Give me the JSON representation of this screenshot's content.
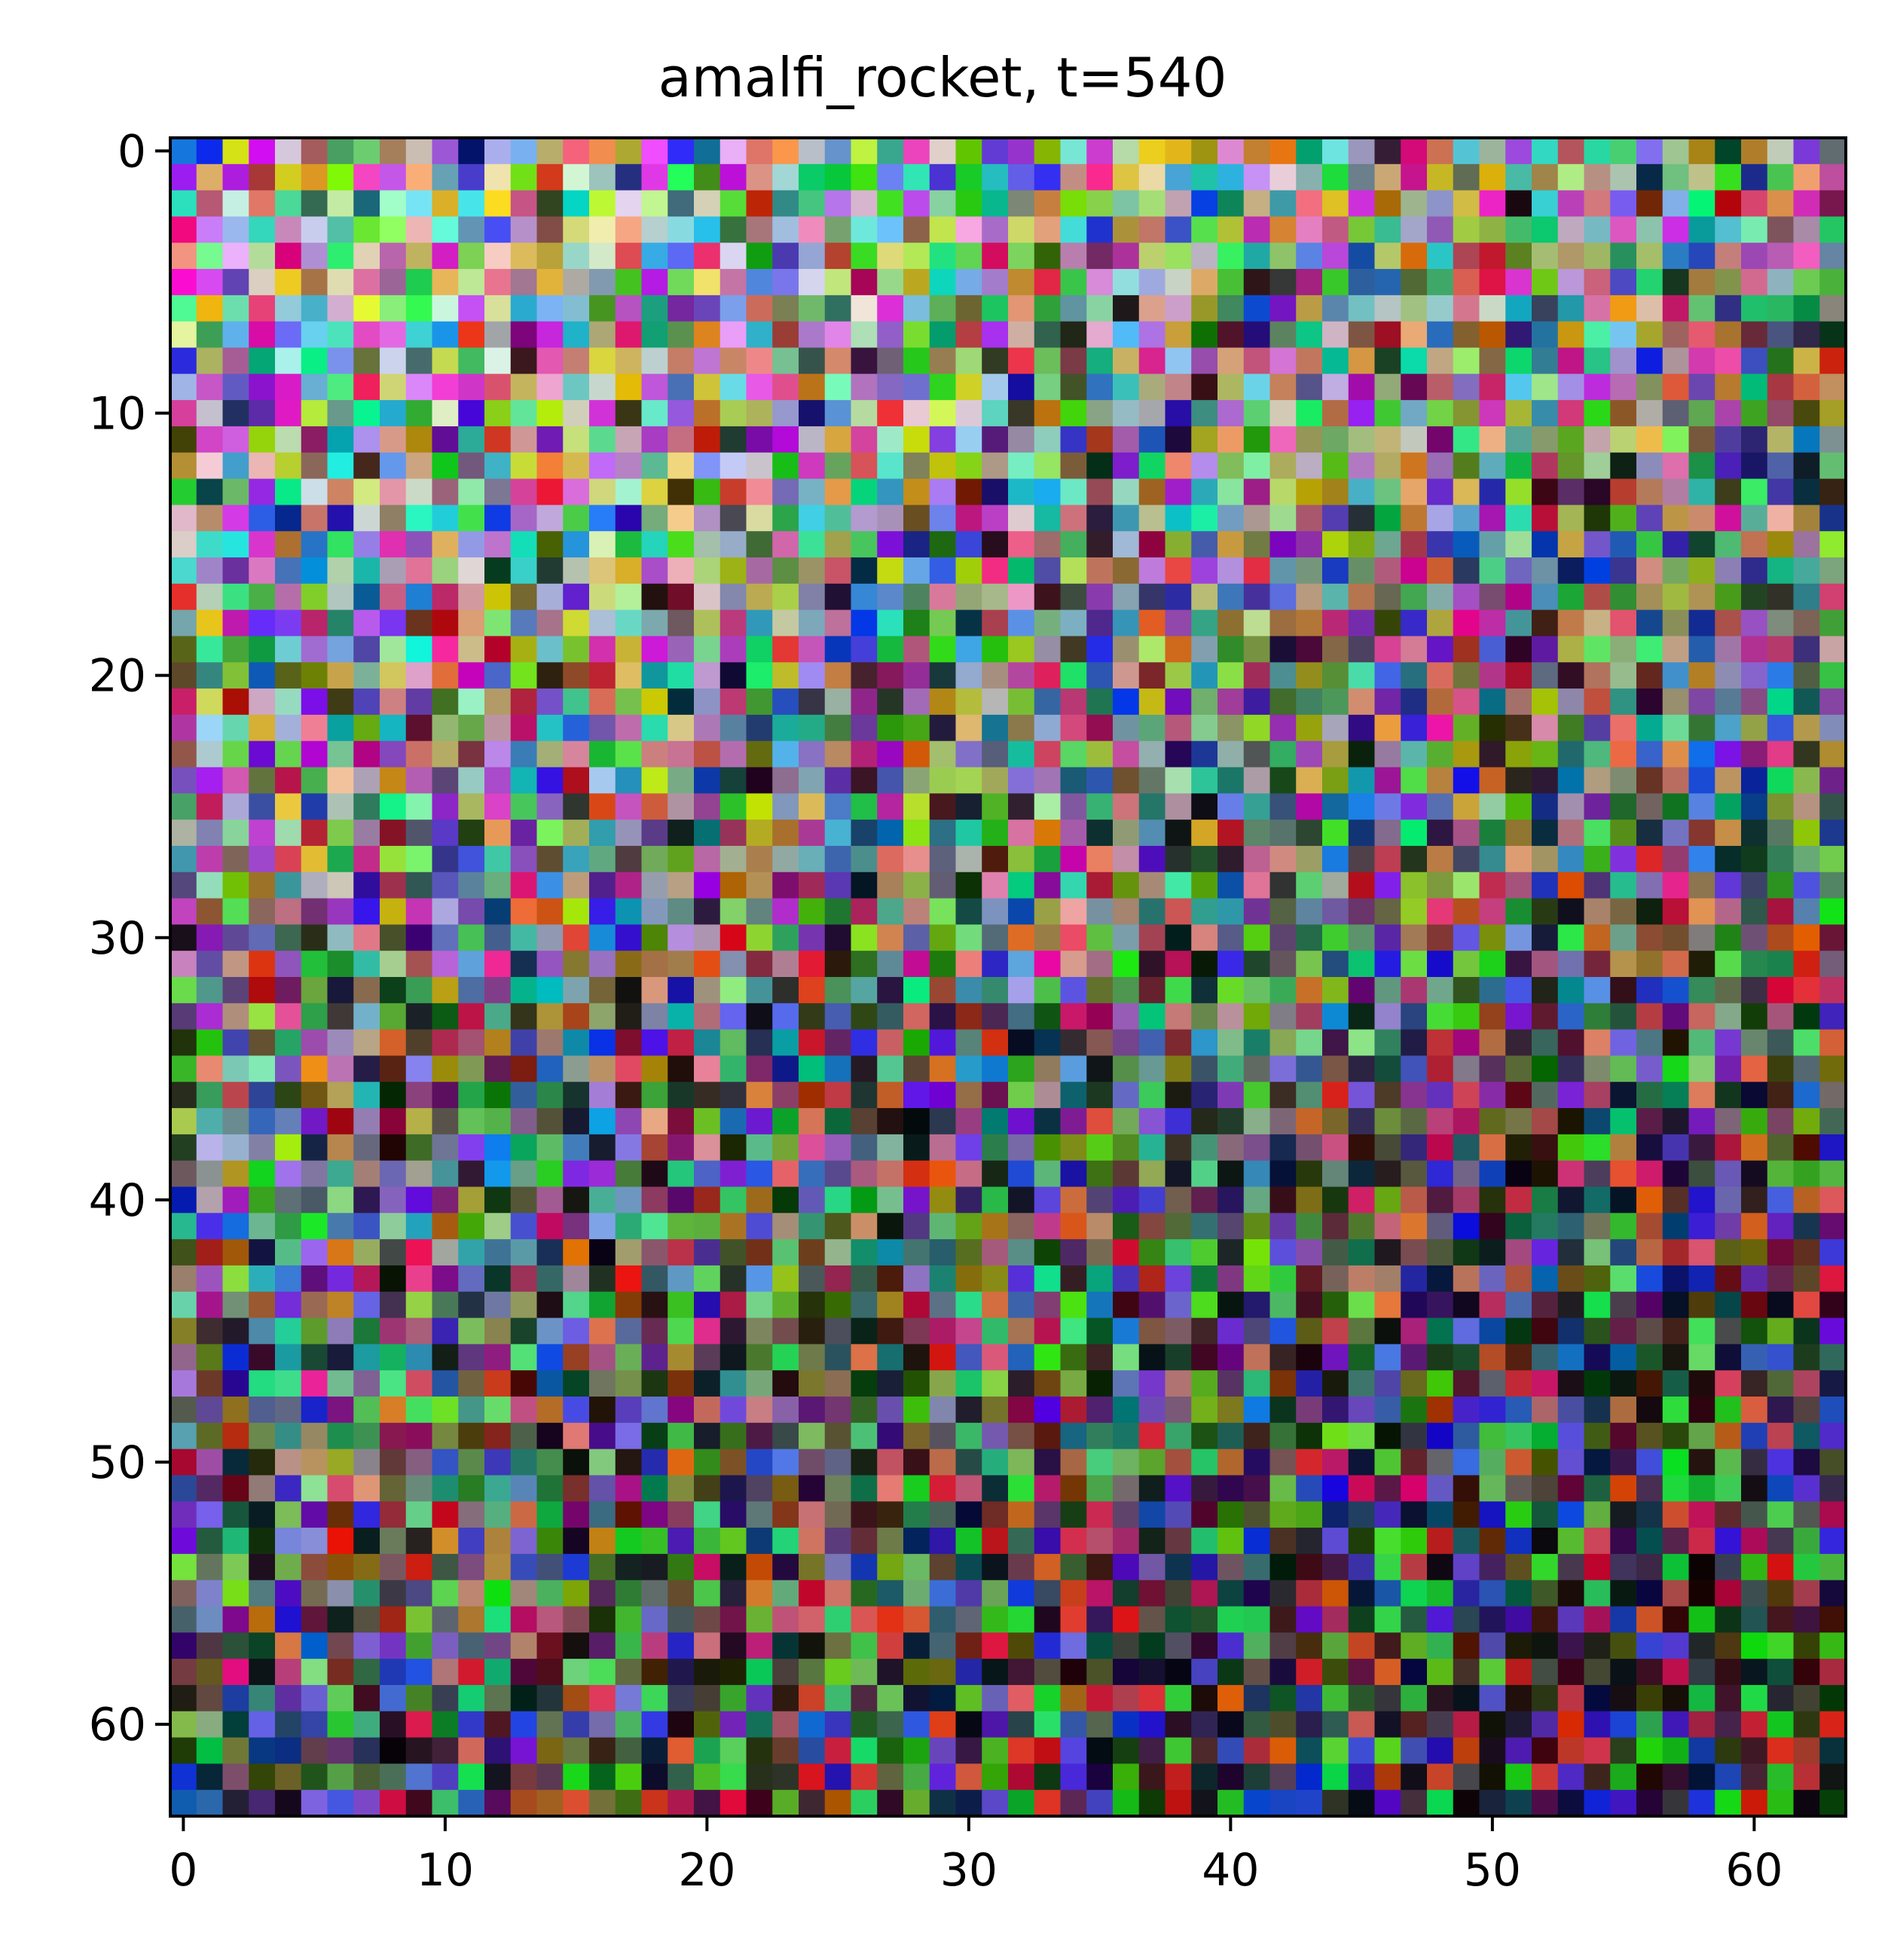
{
  "chart_data": {
    "type": "heatmap",
    "title": "amalfi_rocket, t=540",
    "xlabel": "",
    "ylabel": "",
    "grid": false,
    "image_shape": [
      64,
      64,
      3
    ],
    "xlim": [
      -0.5,
      63.5
    ],
    "ylim": [
      63.5,
      -0.5
    ],
    "xticks": [
      0,
      10,
      20,
      30,
      40,
      50,
      60
    ],
    "yticks": [
      0,
      10,
      20,
      30,
      40,
      50,
      60
    ],
    "content": "RGB image of per-pixel random colored noise; brighter/pastel tones dominate the upper-left, darker saturated tones dominate the lower-right."
  }
}
